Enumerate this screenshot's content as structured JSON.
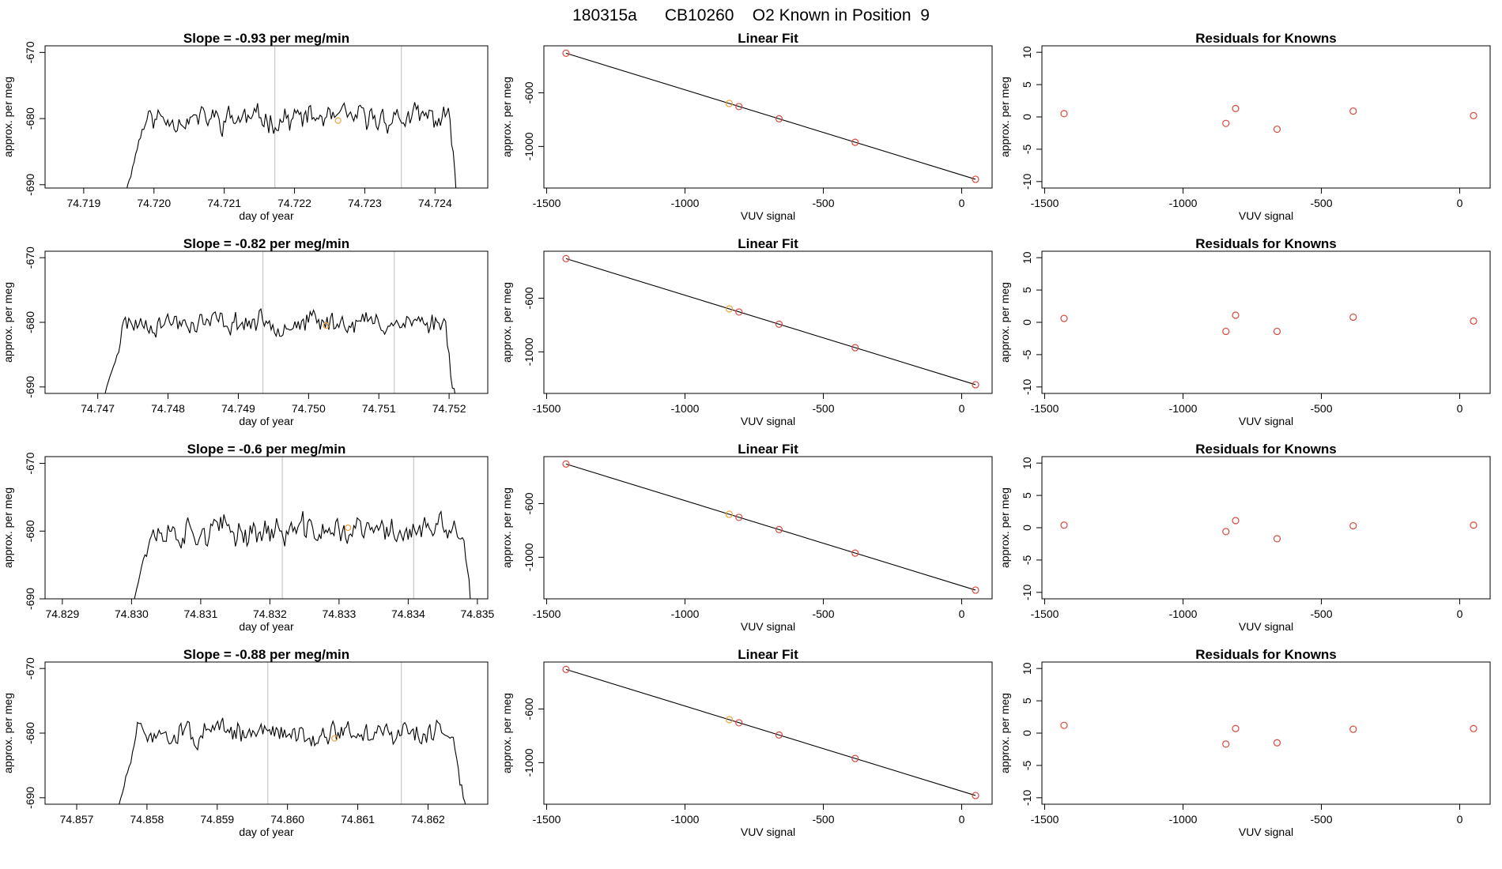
{
  "page_title": "180315a      CB10260    O2 Known in Position  9",
  "colors": {
    "series_line": "#000000",
    "marker_red": "#d9483b",
    "marker_orange": "#f2a33a",
    "vline": "#c8c8c8",
    "frame": "#000000"
  },
  "chart_data": [
    {
      "type": "line",
      "title": "Slope =  -0.93  per meg/min",
      "xlabel": "day of year",
      "ylabel": "approx. per meg",
      "xlim": [
        74.71845,
        74.72475
      ],
      "ylim": [
        -690.5,
        -669
      ],
      "xticks": [
        74.719,
        74.72,
        74.721,
        74.722,
        74.723,
        74.724
      ],
      "xtick_labels": [
        "74.719",
        "74.720",
        "74.721",
        "74.722",
        "74.723",
        "74.724"
      ],
      "yticks": [
        -670,
        -680,
        -690
      ],
      "ytick_labels": [
        "-670",
        "-680",
        "-690"
      ],
      "vlines": [
        74.72172,
        74.72352
      ],
      "marker": {
        "x": 74.72262,
        "y": -680.3
      },
      "x_start": 74.71958,
      "x_end": 74.72435,
      "n_points": 210,
      "y_mean": -680,
      "y_amp": 2.6,
      "seed": 11
    },
    {
      "type": "line",
      "title": "Slope =  -0.82  per meg/min",
      "xlabel": "day of year",
      "ylabel": "approx. per meg",
      "xlim": [
        74.74625,
        74.75255
      ],
      "ylim": [
        -691,
        -669
      ],
      "xticks": [
        74.747,
        74.748,
        74.749,
        74.75,
        74.751,
        74.752
      ],
      "xtick_labels": [
        "74.747",
        "74.748",
        "74.749",
        "74.750",
        "74.751",
        "74.752"
      ],
      "yticks": [
        -670,
        -680,
        -690
      ],
      "ytick_labels": [
        "-670",
        "-680",
        "-690"
      ],
      "vlines": [
        74.74935,
        74.75122
      ],
      "marker": {
        "x": 74.75025,
        "y": -680.5
      },
      "x_start": 74.74708,
      "x_end": 74.75212,
      "n_points": 210,
      "y_mean": -680,
      "y_amp": 2.4,
      "seed": 23
    },
    {
      "type": "line",
      "title": "Slope =  -0.6  per meg/min",
      "xlabel": "day of year",
      "ylabel": "approx. per meg",
      "xlim": [
        74.82875,
        74.83515
      ],
      "ylim": [
        -690,
        -669
      ],
      "xticks": [
        74.829,
        74.83,
        74.831,
        74.832,
        74.833,
        74.834,
        74.835
      ],
      "xtick_labels": [
        "74.829",
        "74.830",
        "74.831",
        "74.832",
        "74.833",
        "74.834",
        "74.835"
      ],
      "yticks": [
        -670,
        -680,
        -690
      ],
      "ytick_labels": [
        "-670",
        "-680",
        "-690"
      ],
      "vlines": [
        74.83218,
        74.83408
      ],
      "marker": {
        "x": 74.83313,
        "y": -679.5
      },
      "x_start": 74.82998,
      "x_end": 74.83495,
      "n_points": 210,
      "y_mean": -680,
      "y_amp": 3.0,
      "seed": 37
    },
    {
      "type": "line",
      "title": "Slope =  -0.88  per meg/min",
      "xlabel": "day of year",
      "ylabel": "approx. per meg",
      "xlim": [
        74.85655,
        74.86285
      ],
      "ylim": [
        -691,
        -669
      ],
      "xticks": [
        74.857,
        74.858,
        74.859,
        74.86,
        74.861,
        74.862
      ],
      "xtick_labels": [
        "74.857",
        "74.858",
        "74.859",
        "74.860",
        "74.861",
        "74.862"
      ],
      "yticks": [
        -670,
        -680,
        -690
      ],
      "ytick_labels": [
        "-670",
        "-680",
        "-690"
      ],
      "vlines": [
        74.85972,
        74.86162
      ],
      "marker": {
        "x": 74.86067,
        "y": -680.8
      },
      "x_start": 74.85758,
      "x_end": 74.86255,
      "n_points": 210,
      "y_mean": -680,
      "y_amp": 2.5,
      "seed": 51
    },
    {
      "type": "scatter",
      "title": "Linear Fit",
      "xlabel": "VUV signal",
      "ylabel": "approx. per meg",
      "xlim": [
        -1510,
        110
      ],
      "ylim": [
        -1310,
        -250
      ],
      "xticks": [
        -1500,
        -1000,
        -500,
        0
      ],
      "xtick_labels": [
        "-1500",
        "-1000",
        "-500",
        "0"
      ],
      "yticks": [
        -600,
        -1000
      ],
      "ytick_labels": [
        "-600",
        "-1000"
      ],
      "fit_line": [
        [
          -1430,
          -305
        ],
        [
          50,
          -1245
        ]
      ],
      "points": [
        [
          -1430,
          -305
        ],
        [
          -840,
          -680
        ],
        [
          -805,
          -703
        ],
        [
          -660,
          -794
        ],
        [
          -385,
          -969
        ],
        [
          50,
          -1245
        ]
      ],
      "highlight_index": 1
    },
    {
      "type": "scatter",
      "title": "Linear Fit",
      "xlabel": "VUV signal",
      "ylabel": "approx. per meg",
      "xlim": [
        -1510,
        110
      ],
      "ylim": [
        -1310,
        -250
      ],
      "xticks": [
        -1500,
        -1000,
        -500,
        0
      ],
      "xtick_labels": [
        "-1500",
        "-1000",
        "-500",
        "0"
      ],
      "yticks": [
        -600,
        -1000
      ],
      "ytick_labels": [
        "-600",
        "-1000"
      ],
      "fit_line": [
        [
          -1430,
          -305
        ],
        [
          50,
          -1245
        ]
      ],
      "points": [
        [
          -1430,
          -305
        ],
        [
          -840,
          -680
        ],
        [
          -805,
          -703
        ],
        [
          -660,
          -794
        ],
        [
          -385,
          -969
        ],
        [
          50,
          -1245
        ]
      ],
      "highlight_index": 1
    },
    {
      "type": "scatter",
      "title": "Linear Fit",
      "xlabel": "VUV signal",
      "ylabel": "approx. per meg",
      "xlim": [
        -1510,
        110
      ],
      "ylim": [
        -1310,
        -250
      ],
      "xticks": [
        -1500,
        -1000,
        -500,
        0
      ],
      "xtick_labels": [
        "-1500",
        "-1000",
        "-500",
        "0"
      ],
      "yticks": [
        -600,
        -1000
      ],
      "ytick_labels": [
        "-600",
        "-1000"
      ],
      "fit_line": [
        [
          -1430,
          -305
        ],
        [
          50,
          -1245
        ]
      ],
      "points": [
        [
          -1430,
          -305
        ],
        [
          -840,
          -680
        ],
        [
          -805,
          -703
        ],
        [
          -660,
          -794
        ],
        [
          -385,
          -969
        ],
        [
          50,
          -1245
        ]
      ],
      "highlight_index": 1
    },
    {
      "type": "scatter",
      "title": "Linear Fit",
      "xlabel": "VUV signal",
      "ylabel": "approx. per meg",
      "xlim": [
        -1510,
        110
      ],
      "ylim": [
        -1310,
        -250
      ],
      "xticks": [
        -1500,
        -1000,
        -500,
        0
      ],
      "xtick_labels": [
        "-1500",
        "-1000",
        "-500",
        "0"
      ],
      "yticks": [
        -600,
        -1000
      ],
      "ytick_labels": [
        "-600",
        "-1000"
      ],
      "fit_line": [
        [
          -1430,
          -305
        ],
        [
          50,
          -1245
        ]
      ],
      "points": [
        [
          -1430,
          -305
        ],
        [
          -840,
          -680
        ],
        [
          -805,
          -703
        ],
        [
          -660,
          -794
        ],
        [
          -385,
          -969
        ],
        [
          50,
          -1245
        ]
      ],
      "highlight_index": 1
    },
    {
      "type": "scatter",
      "title": "Residuals for Knowns",
      "xlabel": "VUV signal",
      "ylabel": "approx. per meg",
      "xlim": [
        -1510,
        110
      ],
      "ylim": [
        -11,
        11
      ],
      "xticks": [
        -1500,
        -1000,
        -500,
        0
      ],
      "xtick_labels": [
        "-1500",
        "-1000",
        "-500",
        "0"
      ],
      "yticks": [
        10,
        5,
        0,
        -5,
        -10
      ],
      "ytick_labels": [
        "10",
        "5",
        "0",
        "-5",
        "-10"
      ],
      "points": [
        [
          -1430,
          0.5
        ],
        [
          -845,
          -1.0
        ],
        [
          -810,
          1.3
        ],
        [
          -660,
          -1.9
        ],
        [
          -385,
          0.9
        ],
        [
          50,
          0.2
        ]
      ]
    },
    {
      "type": "scatter",
      "title": "Residuals for Knowns",
      "xlabel": "VUV signal",
      "ylabel": "approx. per meg",
      "xlim": [
        -1510,
        110
      ],
      "ylim": [
        -11,
        11
      ],
      "xticks": [
        -1500,
        -1000,
        -500,
        0
      ],
      "xtick_labels": [
        "-1500",
        "-1000",
        "-500",
        "0"
      ],
      "yticks": [
        10,
        5,
        0,
        -5,
        -10
      ],
      "ytick_labels": [
        "10",
        "5",
        "0",
        "-5",
        "-10"
      ],
      "points": [
        [
          -1430,
          0.6
        ],
        [
          -845,
          -1.4
        ],
        [
          -810,
          1.1
        ],
        [
          -660,
          -1.4
        ],
        [
          -385,
          0.8
        ],
        [
          50,
          0.2
        ]
      ]
    },
    {
      "type": "scatter",
      "title": "Residuals for Knowns",
      "xlabel": "VUV signal",
      "ylabel": "approx. per meg",
      "xlim": [
        -1510,
        110
      ],
      "ylim": [
        -11,
        11
      ],
      "xticks": [
        -1500,
        -1000,
        -500,
        0
      ],
      "xtick_labels": [
        "-1500",
        "-1000",
        "-500",
        "0"
      ],
      "yticks": [
        10,
        5,
        0,
        -5,
        -10
      ],
      "ytick_labels": [
        "10",
        "5",
        "0",
        "-5",
        "-10"
      ],
      "points": [
        [
          -1430,
          0.4
        ],
        [
          -845,
          -0.6
        ],
        [
          -810,
          1.1
        ],
        [
          -660,
          -1.7
        ],
        [
          -385,
          0.3
        ],
        [
          50,
          0.4
        ]
      ]
    },
    {
      "type": "scatter",
      "title": "Residuals for Knowns",
      "xlabel": "VUV signal",
      "ylabel": "approx. per meg",
      "xlim": [
        -1510,
        110
      ],
      "ylim": [
        -11,
        11
      ],
      "xticks": [
        -1500,
        -1000,
        -500,
        0
      ],
      "xtick_labels": [
        "-1500",
        "-1000",
        "-500",
        "0"
      ],
      "yticks": [
        10,
        5,
        0,
        -5,
        -10
      ],
      "ytick_labels": [
        "10",
        "5",
        "0",
        "-5",
        "-10"
      ],
      "points": [
        [
          -1430,
          1.2
        ],
        [
          -845,
          -1.7
        ],
        [
          -810,
          0.7
        ],
        [
          -660,
          -1.5
        ],
        [
          -385,
          0.6
        ],
        [
          50,
          0.7
        ]
      ]
    }
  ]
}
